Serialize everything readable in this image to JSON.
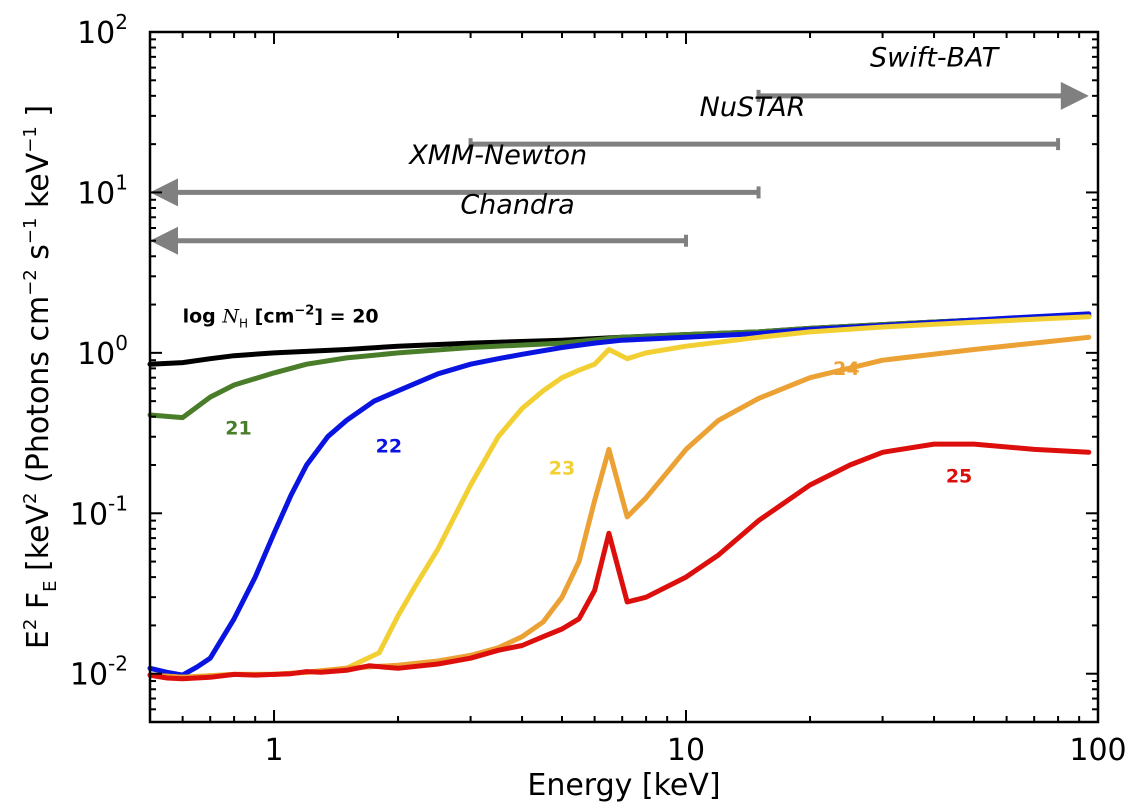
{
  "chart_data": {
    "type": "line",
    "xlabel": "Energy [keV]",
    "ylabel": {
      "prefix": "E",
      "prefix_sup": "2",
      "f": " F",
      "f_sub": "E",
      "unit_open": " [keV",
      "unit_sup": "2",
      "unit_mid": " (Photons cm",
      "unit_sup2": "−2",
      "unit_s": " s",
      "unit_sup3": "−1",
      "unit_kev": " keV",
      "unit_sup4": "−1",
      "unit_close": " ]"
    },
    "xscale": "log",
    "yscale": "log",
    "xlim": [
      0.5,
      100
    ],
    "ylim": [
      0.005,
      100
    ],
    "x_ticks": [
      {
        "value": 1,
        "label": "1"
      },
      {
        "value": 10,
        "label": "10"
      },
      {
        "value": 100,
        "label": "100"
      }
    ],
    "y_ticks": [
      {
        "value": 0.01,
        "base": "10",
        "exp": "-2"
      },
      {
        "value": 0.1,
        "base": "10",
        "exp": "-1"
      },
      {
        "value": 1,
        "base": "10",
        "exp": "0"
      },
      {
        "value": 10,
        "base": "10",
        "exp": "1"
      },
      {
        "value": 100,
        "base": "10",
        "exp": "2"
      }
    ],
    "series_label_prefix": {
      "log": "log ",
      "nh": "N",
      "nh_sub": "H",
      "unit": " [cm",
      "unit_sup": "−2",
      "unit_close": "] = "
    },
    "series": [
      {
        "label": "20",
        "color": "#000000",
        "label_pos": {
          "x": 0.6,
          "y": 1.55
        },
        "x": [
          0.5,
          0.6,
          0.7,
          0.8,
          1,
          1.5,
          2,
          3,
          5,
          7,
          10,
          15,
          20,
          30,
          50,
          70,
          95
        ],
        "y": [
          0.85,
          0.87,
          0.92,
          0.96,
          1.0,
          1.05,
          1.1,
          1.15,
          1.2,
          1.25,
          1.3,
          1.35,
          1.42,
          1.5,
          1.6,
          1.65,
          1.7
        ]
      },
      {
        "label": "21",
        "color": "#4a7d2a",
        "label_pos": {
          "x": 0.82,
          "y": 0.31
        },
        "x": [
          0.5,
          0.6,
          0.65,
          0.7,
          0.8,
          1,
          1.2,
          1.5,
          2,
          3,
          5,
          7,
          10,
          15,
          20,
          30,
          50,
          70,
          95
        ],
        "y": [
          0.41,
          0.395,
          0.46,
          0.53,
          0.63,
          0.75,
          0.85,
          0.93,
          1.0,
          1.08,
          1.15,
          1.25,
          1.3,
          1.35,
          1.42,
          1.5,
          1.6,
          1.65,
          1.7
        ]
      },
      {
        "label": "22",
        "color": "#0a14e0",
        "label_pos": {
          "x": 1.9,
          "y": 0.24
        },
        "x": [
          0.5,
          0.55,
          0.6,
          0.65,
          0.7,
          0.8,
          0.9,
          1.0,
          1.1,
          1.2,
          1.35,
          1.5,
          1.75,
          2.0,
          2.5,
          3.0,
          3.5,
          4,
          5,
          6,
          7,
          10,
          15,
          20,
          30,
          50,
          70,
          95
        ],
        "y": [
          0.0108,
          0.0102,
          0.0098,
          0.011,
          0.0125,
          0.022,
          0.04,
          0.075,
          0.13,
          0.2,
          0.3,
          0.38,
          0.5,
          0.58,
          0.74,
          0.85,
          0.92,
          0.98,
          1.08,
          1.15,
          1.2,
          1.25,
          1.32,
          1.4,
          1.48,
          1.6,
          1.68,
          1.75
        ]
      },
      {
        "label": "23",
        "color": "#f2d034",
        "label_pos": {
          "x": 5.0,
          "y": 0.175
        },
        "x": [
          0.5,
          0.6,
          0.7,
          0.8,
          1,
          1.2,
          1.5,
          1.8,
          2,
          2.2,
          2.5,
          3,
          3.5,
          4,
          4.5,
          5,
          5.5,
          6,
          6.5,
          7.2,
          8,
          10,
          15,
          20,
          30,
          50,
          70,
          95
        ],
        "y": [
          0.0098,
          0.0095,
          0.0097,
          0.0099,
          0.0099,
          0.0102,
          0.0108,
          0.0135,
          0.023,
          0.035,
          0.06,
          0.15,
          0.3,
          0.45,
          0.58,
          0.7,
          0.78,
          0.85,
          1.05,
          0.92,
          1.0,
          1.1,
          1.25,
          1.35,
          1.45,
          1.55,
          1.62,
          1.68
        ]
      },
      {
        "label": "24",
        "color": "#eba133",
        "label_pos": {
          "x": 24.5,
          "y": 0.73
        },
        "x": [
          0.5,
          0.6,
          0.7,
          0.8,
          1,
          1.2,
          1.5,
          2,
          2.5,
          3,
          3.5,
          4,
          4.5,
          5,
          5.5,
          6,
          6.5,
          7.2,
          8,
          9,
          10,
          12,
          15,
          20,
          30,
          50,
          70,
          95
        ],
        "y": [
          0.0098,
          0.0095,
          0.0097,
          0.0099,
          0.0099,
          0.0102,
          0.0108,
          0.0113,
          0.012,
          0.013,
          0.0145,
          0.017,
          0.021,
          0.03,
          0.05,
          0.12,
          0.25,
          0.095,
          0.125,
          0.18,
          0.25,
          0.38,
          0.52,
          0.7,
          0.9,
          1.05,
          1.15,
          1.25
        ]
      },
      {
        "label": "25",
        "color": "#dc0f0c",
        "label_pos": {
          "x": 46,
          "y": 0.155
        },
        "x": [
          0.5,
          0.55,
          0.6,
          0.7,
          0.8,
          0.9,
          1.0,
          1.1,
          1.2,
          1.3,
          1.5,
          1.7,
          2.0,
          2.5,
          3,
          3.5,
          4,
          4.5,
          5,
          5.5,
          6,
          6.5,
          7.2,
          8,
          10,
          12,
          15,
          20,
          25,
          30,
          40,
          50,
          70,
          95
        ],
        "y": [
          0.0098,
          0.0094,
          0.0093,
          0.0095,
          0.0099,
          0.0098,
          0.0099,
          0.01,
          0.0103,
          0.0102,
          0.0105,
          0.0112,
          0.0108,
          0.0115,
          0.0125,
          0.014,
          0.015,
          0.017,
          0.019,
          0.022,
          0.033,
          0.075,
          0.028,
          0.03,
          0.04,
          0.055,
          0.09,
          0.15,
          0.2,
          0.24,
          0.27,
          0.27,
          0.25,
          0.24
        ]
      }
    ],
    "instruments": [
      {
        "label": "Swift-BAT",
        "from": 15,
        "to": 95,
        "y": 40,
        "arrow": "right",
        "label_x": 40,
        "label_y": 61
      },
      {
        "label": "NuSTAR",
        "from": 3,
        "to": 80,
        "y": 20,
        "arrow": "none",
        "label_x": 14.5,
        "label_y": 30
      },
      {
        "label": "XMM-Newton",
        "from": 0.5,
        "to": 15,
        "y": 10,
        "arrow": "left",
        "label_x": 3.5,
        "label_y": 15
      },
      {
        "label": "Chandra",
        "from": 0.5,
        "to": 10,
        "y": 5,
        "arrow": "left",
        "label_x": 3.9,
        "label_y": 7.4
      }
    ],
    "instrument_color": "#808080"
  }
}
